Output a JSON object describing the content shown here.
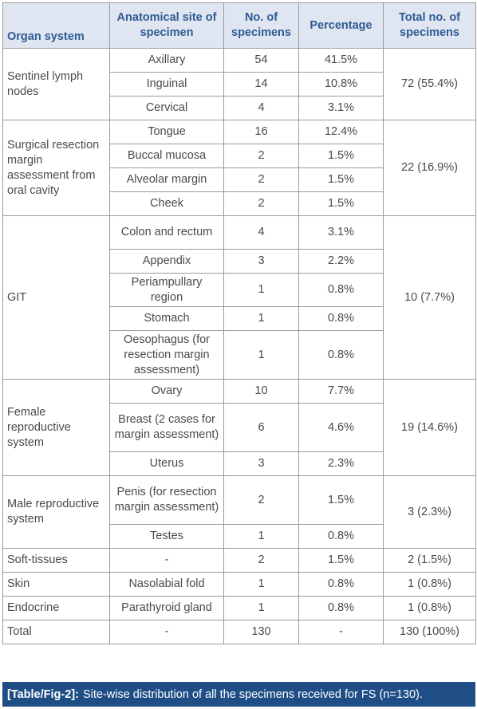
{
  "headers": {
    "organ": "Organ system",
    "site": "Anatomical site of specimen",
    "num": "No. of specimens",
    "pct": "Percentage",
    "total": "Total no. of specimens"
  },
  "groups": [
    {
      "organ": "Sentinel lymph nodes",
      "total": "72 (55.4%)",
      "rows": [
        {
          "site": "Axillary",
          "num": "54",
          "pct": "41.5%"
        },
        {
          "site": "Inguinal",
          "num": "14",
          "pct": "10.8%"
        },
        {
          "site": "Cervical",
          "num": "4",
          "pct": "3.1%"
        }
      ]
    },
    {
      "organ": "Surgical resection margin assessment from oral cavity",
      "total": "22 (16.9%)",
      "rows": [
        {
          "site": "Tongue",
          "num": "16",
          "pct": "12.4%"
        },
        {
          "site": "Buccal mucosa",
          "num": "2",
          "pct": "1.5%"
        },
        {
          "site": "Alveolar margin",
          "num": "2",
          "pct": "1.5%"
        },
        {
          "site": "Cheek",
          "num": "2",
          "pct": "1.5%"
        }
      ]
    },
    {
      "organ": "GIT",
      "total": "10 (7.7%)",
      "rows": [
        {
          "site": "Colon and rectum",
          "num": "4",
          "pct": "3.1%"
        },
        {
          "site": "Appendix",
          "num": "3",
          "pct": "2.2%"
        },
        {
          "site": "Periampullary region",
          "num": "1",
          "pct": "0.8%"
        },
        {
          "site": "Stomach",
          "num": "1",
          "pct": "0.8%"
        },
        {
          "site": "Oesophagus (for resection margin assessment)",
          "num": "1",
          "pct": "0.8%"
        }
      ]
    },
    {
      "organ": "Female reproductive system",
      "total": "19 (14.6%)",
      "rows": [
        {
          "site": "Ovary",
          "num": "10",
          "pct": "7.7%"
        },
        {
          "site": "Breast (2 cases for margin assessment)",
          "num": "6",
          "pct": "4.6%"
        },
        {
          "site": "Uterus",
          "num": "3",
          "pct": "2.3%"
        }
      ]
    },
    {
      "organ": "Male reproductive system",
      "total": "3 (2.3%)",
      "rows": [
        {
          "site": "Penis (for resection margin assessment)",
          "num": "2",
          "pct": "1.5%"
        },
        {
          "site": "Testes",
          "num": "1",
          "pct": "0.8%"
        }
      ]
    },
    {
      "organ": "Soft-tissues",
      "total": "2 (1.5%)",
      "rows": [
        {
          "site": "-",
          "num": "2",
          "pct": "1.5%"
        }
      ]
    },
    {
      "organ": "Skin",
      "total": "1 (0.8%)",
      "rows": [
        {
          "site": "Nasolabial fold",
          "num": "1",
          "pct": "0.8%"
        }
      ]
    },
    {
      "organ": "Endocrine",
      "total": "1 (0.8%)",
      "rows": [
        {
          "site": "Parathyroid gland",
          "num": "1",
          "pct": "0.8%"
        }
      ]
    },
    {
      "organ": "Total",
      "total": "130 (100%)",
      "rows": [
        {
          "site": "-",
          "num": "130",
          "pct": "-"
        }
      ]
    }
  ],
  "caption": {
    "label": "[Table/Fig-2]:",
    "text": "Site-wise distribution of all the specimens received for FS (n=130)."
  },
  "colors": {
    "header_bg": "#dfe6f1",
    "header_text": "#2f5b93",
    "caption_bg": "#1f4e87",
    "border": "#9a9a9a"
  }
}
